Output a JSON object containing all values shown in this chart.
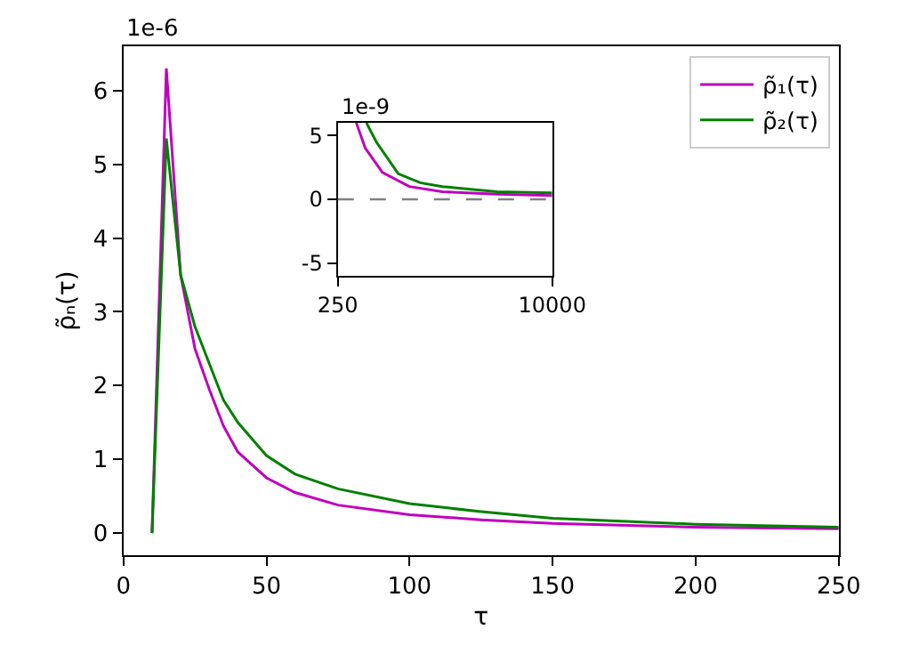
{
  "chart_data": [
    {
      "type": "line",
      "xlabel": "τ",
      "ylabel": "ρ̃ₙ(τ)",
      "annotations": [
        "1e-6"
      ],
      "xlim": [
        0,
        250
      ],
      "xticks": [
        0,
        50,
        100,
        150,
        200,
        250
      ],
      "ylim": [
        -0.3,
        6.6
      ],
      "yticks": [
        0,
        1,
        2,
        3,
        4,
        5,
        6
      ],
      "legend": "top right",
      "grid": false,
      "marker": "none",
      "line_style": "solid",
      "x": [
        10,
        15,
        20,
        25,
        30,
        35,
        40,
        50,
        60,
        75,
        100,
        125,
        150,
        200,
        250
      ],
      "series": [
        {
          "name": "ρ̃₁(τ)",
          "color": "#bf00bf",
          "values": [
            0,
            6.3,
            3.5,
            2.5,
            1.95,
            1.45,
            1.1,
            0.75,
            0.55,
            0.38,
            0.25,
            0.18,
            0.13,
            0.08,
            0.06
          ]
        },
        {
          "name": "ρ̃₂(τ)",
          "color": "#008000",
          "values": [
            0,
            5.35,
            3.5,
            2.8,
            2.3,
            1.8,
            1.5,
            1.05,
            0.8,
            0.6,
            0.4,
            0.29,
            0.2,
            0.12,
            0.08
          ]
        }
      ]
    },
    {
      "type": "line",
      "annotations": [
        "1e-9"
      ],
      "xlim": [
        250,
        10000
      ],
      "xticks": [
        250,
        10000
      ],
      "ylim": [
        -6,
        6
      ],
      "yticks": [
        -5,
        0,
        5
      ],
      "grid": false,
      "marker": "none",
      "line_style": "solid",
      "ref_lines": [
        {
          "axis": "y",
          "value": 0,
          "color": "#808080",
          "line_style": "dashed"
        }
      ],
      "series": [
        {
          "color": "#bf00bf",
          "x": [
            1090,
            1500,
            2280,
            3500,
            5000,
            7500,
            10000
          ],
          "values": [
            6,
            4,
            2.1,
            1.0,
            0.6,
            0.4,
            0.3
          ]
        },
        {
          "color": "#008000",
          "x": [
            1550,
            2000,
            3000,
            4000,
            5000,
            7500,
            10000
          ],
          "values": [
            6,
            4.5,
            2.0,
            1.3,
            1.0,
            0.6,
            0.5
          ]
        }
      ]
    }
  ]
}
